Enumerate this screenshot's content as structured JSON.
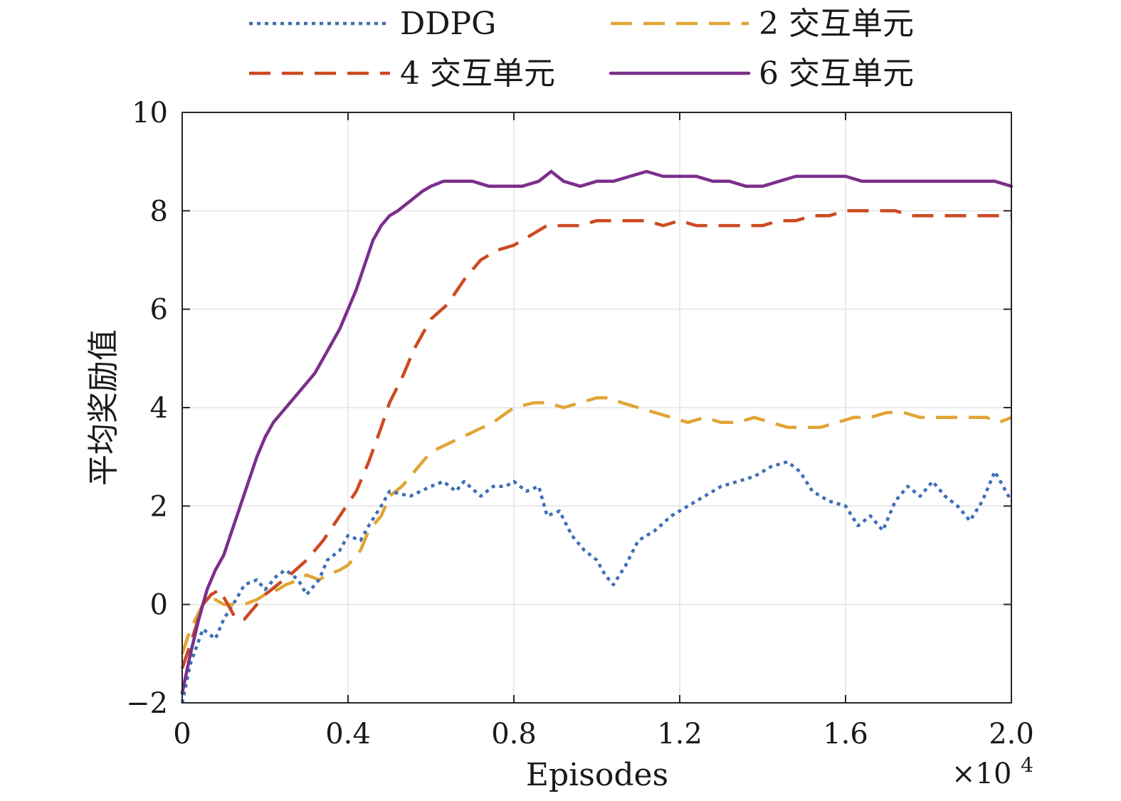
{
  "chart_data": {
    "type": "line",
    "title": "",
    "xlabel": "Episodes",
    "ylabel": "平均奖励值",
    "x_multiplier": "×10",
    "x_multiplier_exp": "4",
    "xlim": [
      0,
      2.0
    ],
    "ylim": [
      -2,
      10
    ],
    "xticks": [
      0,
      0.4,
      0.8,
      1.2,
      1.6,
      2.0
    ],
    "xtick_labels": [
      "0",
      "0.4",
      "0.8",
      "1.2",
      "1.6",
      "2.0"
    ],
    "yticks": [
      -2,
      0,
      2,
      4,
      6,
      8,
      10
    ],
    "ytick_labels": [
      "−2",
      "0",
      "2",
      "4",
      "6",
      "8",
      "10"
    ],
    "grid": true,
    "legend_position": "top",
    "series": [
      {
        "name": "DDPG",
        "color": "#3d6fb6",
        "style": "dotted",
        "x": [
          0,
          0.02,
          0.05,
          0.08,
          0.1,
          0.13,
          0.15,
          0.18,
          0.2,
          0.23,
          0.25,
          0.28,
          0.3,
          0.33,
          0.35,
          0.38,
          0.4,
          0.43,
          0.45,
          0.48,
          0.5,
          0.55,
          0.6,
          0.63,
          0.66,
          0.68,
          0.72,
          0.75,
          0.78,
          0.8,
          0.83,
          0.86,
          0.88,
          0.91,
          0.94,
          0.97,
          1.0,
          1.02,
          1.04,
          1.07,
          1.1,
          1.14,
          1.18,
          1.22,
          1.26,
          1.3,
          1.34,
          1.38,
          1.42,
          1.46,
          1.49,
          1.52,
          1.56,
          1.6,
          1.63,
          1.66,
          1.69,
          1.72,
          1.75,
          1.78,
          1.81,
          1.84,
          1.87,
          1.9,
          1.93,
          1.96,
          2.0
        ],
        "values": [
          -2.0,
          -1.2,
          -0.5,
          -0.7,
          -0.3,
          0.1,
          0.4,
          0.5,
          0.3,
          0.6,
          0.7,
          0.5,
          0.2,
          0.5,
          0.9,
          1.1,
          1.4,
          1.3,
          1.6,
          2.0,
          2.3,
          2.2,
          2.4,
          2.5,
          2.3,
          2.5,
          2.2,
          2.4,
          2.4,
          2.5,
          2.3,
          2.4,
          1.8,
          1.9,
          1.4,
          1.1,
          0.9,
          0.6,
          0.4,
          0.8,
          1.3,
          1.5,
          1.8,
          2.0,
          2.2,
          2.4,
          2.5,
          2.6,
          2.8,
          2.9,
          2.7,
          2.3,
          2.1,
          2.0,
          1.6,
          1.8,
          1.5,
          2.1,
          2.4,
          2.2,
          2.5,
          2.2,
          2.0,
          1.7,
          2.1,
          2.7,
          2.1
        ]
      },
      {
        "name": "2 交互单元",
        "color": "#e0a534",
        "style": "dashed",
        "x": [
          0,
          0.02,
          0.05,
          0.08,
          0.1,
          0.12,
          0.15,
          0.18,
          0.2,
          0.23,
          0.25,
          0.28,
          0.3,
          0.33,
          0.35,
          0.38,
          0.4,
          0.43,
          0.45,
          0.48,
          0.5,
          0.53,
          0.55,
          0.58,
          0.6,
          0.65,
          0.7,
          0.75,
          0.8,
          0.85,
          0.88,
          0.92,
          0.96,
          1.0,
          1.03,
          1.06,
          1.1,
          1.14,
          1.18,
          1.22,
          1.26,
          1.3,
          1.34,
          1.38,
          1.42,
          1.46,
          1.5,
          1.54,
          1.58,
          1.62,
          1.66,
          1.7,
          1.74,
          1.78,
          1.82,
          1.86,
          1.9,
          1.94,
          1.97,
          2.0
        ],
        "values": [
          -1.0,
          -0.5,
          0.0,
          0.1,
          0.0,
          0.0,
          0.0,
          0.1,
          0.2,
          0.3,
          0.4,
          0.5,
          0.6,
          0.5,
          0.6,
          0.7,
          0.8,
          1.1,
          1.5,
          1.8,
          2.2,
          2.4,
          2.6,
          2.9,
          3.1,
          3.3,
          3.5,
          3.7,
          4.0,
          4.1,
          4.1,
          4.0,
          4.1,
          4.2,
          4.2,
          4.1,
          4.0,
          3.9,
          3.8,
          3.7,
          3.8,
          3.7,
          3.7,
          3.8,
          3.7,
          3.6,
          3.6,
          3.6,
          3.7,
          3.8,
          3.8,
          3.9,
          3.9,
          3.8,
          3.8,
          3.8,
          3.8,
          3.8,
          3.7,
          3.8
        ]
      },
      {
        "name": "4 交互单元",
        "color": "#cc4a22",
        "style": "dashed",
        "x": [
          0,
          0.02,
          0.05,
          0.07,
          0.09,
          0.11,
          0.13,
          0.15,
          0.18,
          0.2,
          0.23,
          0.26,
          0.3,
          0.34,
          0.38,
          0.42,
          0.45,
          0.48,
          0.5,
          0.53,
          0.56,
          0.6,
          0.64,
          0.68,
          0.72,
          0.76,
          0.8,
          0.84,
          0.88,
          0.92,
          0.96,
          1.0,
          1.04,
          1.08,
          1.12,
          1.16,
          1.2,
          1.24,
          1.28,
          1.32,
          1.36,
          1.4,
          1.44,
          1.48,
          1.52,
          1.56,
          1.6,
          1.64,
          1.68,
          1.72,
          1.76,
          1.8,
          1.84,
          1.88,
          1.92,
          1.96,
          2.0
        ],
        "values": [
          -1.3,
          -0.8,
          0.0,
          0.2,
          0.3,
          0.0,
          -0.3,
          -0.3,
          0.0,
          0.2,
          0.4,
          0.6,
          0.9,
          1.3,
          1.8,
          2.3,
          2.9,
          3.6,
          4.1,
          4.6,
          5.2,
          5.8,
          6.1,
          6.6,
          7.0,
          7.2,
          7.3,
          7.5,
          7.7,
          7.7,
          7.7,
          7.8,
          7.8,
          7.8,
          7.8,
          7.7,
          7.8,
          7.7,
          7.7,
          7.7,
          7.7,
          7.7,
          7.8,
          7.8,
          7.9,
          7.9,
          8.0,
          8.0,
          8.0,
          8.0,
          7.9,
          7.9,
          7.9,
          7.9,
          7.9,
          7.9,
          7.9
        ]
      },
      {
        "name": "6 交互单元",
        "color": "#7b2f8c",
        "style": "solid",
        "x": [
          0,
          0.02,
          0.04,
          0.06,
          0.08,
          0.1,
          0.12,
          0.14,
          0.16,
          0.18,
          0.2,
          0.22,
          0.24,
          0.26,
          0.28,
          0.3,
          0.32,
          0.34,
          0.36,
          0.38,
          0.4,
          0.42,
          0.44,
          0.46,
          0.48,
          0.5,
          0.52,
          0.55,
          0.58,
          0.6,
          0.63,
          0.66,
          0.7,
          0.74,
          0.78,
          0.82,
          0.86,
          0.89,
          0.92,
          0.96,
          1.0,
          1.04,
          1.08,
          1.12,
          1.16,
          1.2,
          1.24,
          1.28,
          1.32,
          1.36,
          1.4,
          1.44,
          1.48,
          1.52,
          1.56,
          1.6,
          1.64,
          1.68,
          1.72,
          1.76,
          1.8,
          1.84,
          1.88,
          1.92,
          1.96,
          2.0
        ],
        "values": [
          -1.8,
          -1.0,
          -0.3,
          0.3,
          0.7,
          1.0,
          1.5,
          2.0,
          2.5,
          3.0,
          3.4,
          3.7,
          3.9,
          4.1,
          4.3,
          4.5,
          4.7,
          5.0,
          5.3,
          5.6,
          6.0,
          6.4,
          6.9,
          7.4,
          7.7,
          7.9,
          8.0,
          8.2,
          8.4,
          8.5,
          8.6,
          8.6,
          8.6,
          8.5,
          8.5,
          8.5,
          8.6,
          8.8,
          8.6,
          8.5,
          8.6,
          8.6,
          8.7,
          8.8,
          8.7,
          8.7,
          8.7,
          8.6,
          8.6,
          8.5,
          8.5,
          8.6,
          8.7,
          8.7,
          8.7,
          8.7,
          8.6,
          8.6,
          8.6,
          8.6,
          8.6,
          8.6,
          8.6,
          8.6,
          8.6,
          8.5
        ]
      }
    ]
  }
}
